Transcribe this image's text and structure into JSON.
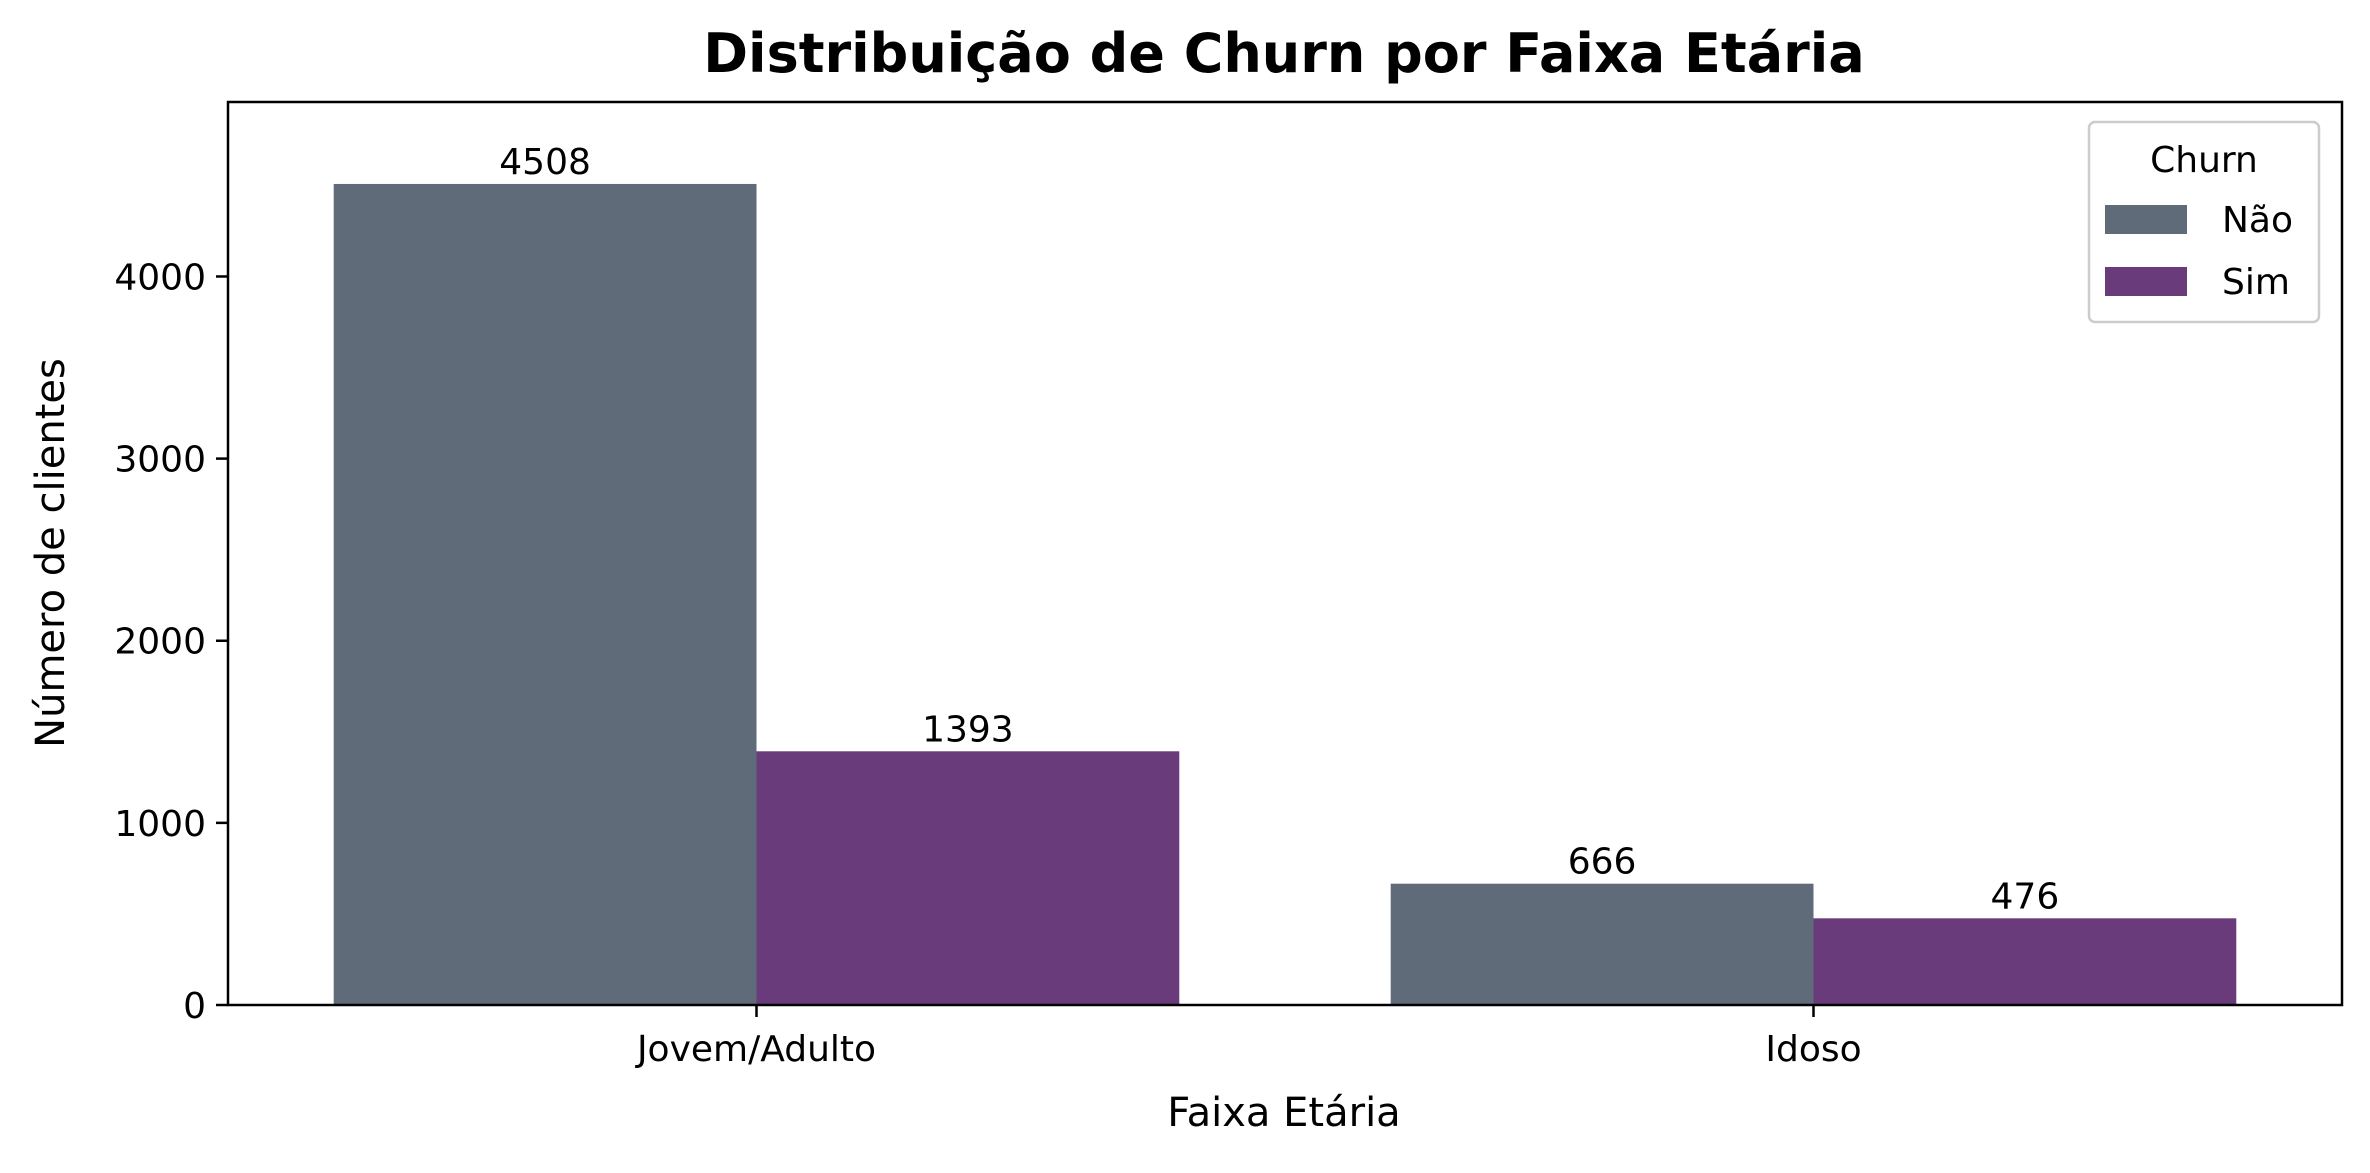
{
  "chart_data": {
    "type": "bar",
    "title": "Distribuição de Churn por Faixa Etária",
    "xlabel": "Faixa Etária",
    "ylabel": "Número de clientes",
    "categories": [
      "Jovem/Adulto",
      "Idoso"
    ],
    "series": [
      {
        "name": "Não",
        "color": "#5f6b79",
        "values": [
          4508,
          666
        ]
      },
      {
        "name": "Sim",
        "color": "#6a3b7a",
        "values": [
          1393,
          476
        ]
      }
    ],
    "ylim": [
      0,
      4958
    ],
    "yticks": [
      0,
      1000,
      2000,
      3000,
      4000
    ],
    "legend": {
      "title": "Churn",
      "position": "top-right"
    },
    "grid": false,
    "show_data_labels": true
  }
}
